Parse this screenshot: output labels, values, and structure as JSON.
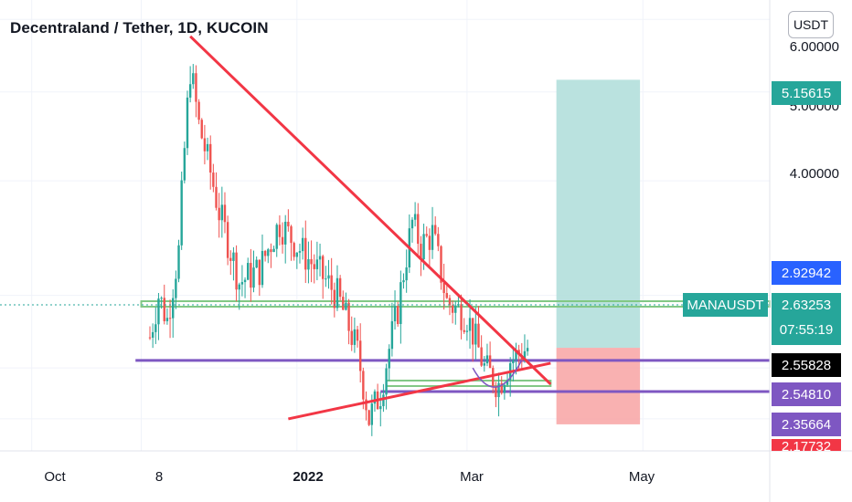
{
  "header": {
    "title": "Decentraland / Tether, 1D, KUCOIN",
    "currency": "USDT"
  },
  "colors": {
    "up": "#26a69a",
    "down": "#ef5350",
    "trendline": "#f23645",
    "level": "#7e57c2",
    "zone": "#81c784",
    "target": "#b2dfdb",
    "stop": "#f8a8a8"
  },
  "chart_data": {
    "type": "candlestick",
    "scale": "log",
    "ylim": [
      2.03,
      6.3
    ],
    "xlim": [
      "2021-09-20",
      "2022-06-14"
    ],
    "y_ticks": [
      "6.00000",
      "5.00000",
      "4.00000"
    ],
    "x_ticks": [
      "Oct",
      "8",
      "2022",
      "Mar",
      "May"
    ],
    "price_labels": [
      {
        "value": "5.15615",
        "color": "#26a69a"
      },
      {
        "value": "2.92942",
        "color": "#2962ff"
      },
      {
        "value": "2.63253",
        "color": "#26a69a"
      },
      {
        "value": "2.55828",
        "color": "#000000"
      },
      {
        "value": "2.54810",
        "color": "#7e57c2"
      },
      {
        "value": "2.35664",
        "color": "#7e57c2"
      },
      {
        "value": "2.17732",
        "color": "#f23645"
      }
    ],
    "symbol": "MANAUSDT",
    "countdown": "07:55:19",
    "last_price": 2.63253,
    "trendlines": [
      {
        "from": [
          "2021-11-25",
          5.75
        ],
        "to": [
          "2022-03-30",
          2.4
        ]
      },
      {
        "from": [
          "2021-12-29",
          2.2
        ],
        "to": [
          "2022-03-30",
          2.53
        ]
      }
    ],
    "horizontal_levels": [
      {
        "price": 2.92942,
        "color": "#81c784"
      },
      {
        "price": 2.548,
        "color": "#7e57c2"
      },
      {
        "price": 2.356,
        "color": "#7e57c2"
      }
    ],
    "target_zone": {
      "from": "2022-04-01",
      "to": "2022-04-30",
      "top": 5.15615,
      "bottom": 2.63
    },
    "stop_zone": {
      "from": "2022-04-01",
      "to": "2022-04-30",
      "top": 2.63,
      "bottom": 2.17
    },
    "anchors": [
      [
        "2021-11-11",
        2.7
      ],
      [
        "2021-11-14",
        3.0
      ],
      [
        "2021-11-17",
        2.82
      ],
      [
        "2021-11-21",
        3.35
      ],
      [
        "2021-11-25",
        5.3
      ],
      [
        "2021-11-28",
        4.6
      ],
      [
        "2021-12-05",
        3.7
      ],
      [
        "2021-12-12",
        3.1
      ],
      [
        "2021-12-19",
        3.2
      ],
      [
        "2021-12-26",
        3.6
      ],
      [
        "2022-01-01",
        3.4
      ],
      [
        "2022-01-08",
        3.2
      ],
      [
        "2022-01-15",
        3.0
      ],
      [
        "2022-01-22",
        2.6
      ],
      [
        "2022-01-26",
        2.2
      ],
      [
        "2022-01-30",
        2.35
      ],
      [
        "2022-02-05",
        2.9
      ],
      [
        "2022-02-10",
        3.6
      ],
      [
        "2022-02-13",
        3.4
      ],
      [
        "2022-02-17",
        3.5
      ],
      [
        "2022-02-22",
        2.95
      ],
      [
        "2022-03-01",
        2.85
      ],
      [
        "2022-03-07",
        2.5
      ],
      [
        "2022-03-12",
        2.4
      ],
      [
        "2022-03-16",
        2.55
      ],
      [
        "2022-03-22",
        2.63
      ]
    ]
  }
}
